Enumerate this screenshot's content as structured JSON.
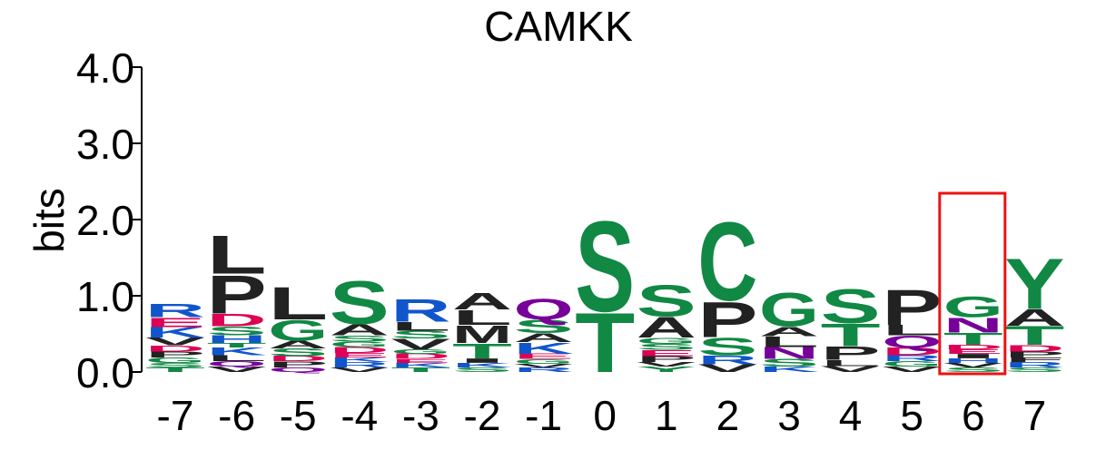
{
  "chart_data": {
    "type": "sequence_logo",
    "title": "CAMKK",
    "ylabel": "bits",
    "xlabel": "",
    "ylim": [
      0,
      4
    ],
    "yticks": [
      "0.0",
      "1.0",
      "2.0",
      "3.0",
      "4.0"
    ],
    "colors": {
      "acidic": "#dd0055",
      "basic": "#1155cc",
      "polar": "#118844",
      "hydrophobic": "#222222",
      "amide": "#770099",
      "highlight_box": "#ee1111"
    },
    "highlight_position": "6",
    "positions": [
      {
        "label": "-7",
        "letters": [
          [
            "T",
            0.06
          ],
          [
            "S",
            0.06
          ],
          [
            "G",
            0.07
          ],
          [
            "P",
            0.08
          ],
          [
            "D",
            0.08
          ],
          [
            "V",
            0.1
          ],
          [
            "K",
            0.14
          ],
          [
            "E",
            0.13
          ],
          [
            "R",
            0.18
          ]
        ]
      },
      {
        "label": "-6",
        "letters": [
          [
            "V",
            0.07
          ],
          [
            "Q",
            0.07
          ],
          [
            "L",
            0.08
          ],
          [
            "K",
            0.1
          ],
          [
            "T",
            0.06
          ],
          [
            "H",
            0.1
          ],
          [
            "S",
            0.12
          ],
          [
            "D",
            0.17
          ],
          [
            "P",
            0.52
          ],
          [
            "L",
            0.52
          ]
        ]
      },
      {
        "label": "-5",
        "letters": [
          [
            "Q",
            0.06
          ],
          [
            "P",
            0.08
          ],
          [
            "D",
            0.07
          ],
          [
            "S",
            0.1
          ],
          [
            "A",
            0.1
          ],
          [
            "G",
            0.28
          ],
          [
            "L",
            0.44
          ]
        ]
      },
      {
        "label": "-4",
        "letters": [
          [
            "V",
            0.06
          ],
          [
            "R",
            0.07
          ],
          [
            "K",
            0.06
          ],
          [
            "E",
            0.06
          ],
          [
            "D",
            0.08
          ],
          [
            "G",
            0.07
          ],
          [
            "S",
            0.08
          ],
          [
            "A",
            0.15
          ],
          [
            "S",
            0.58
          ]
        ]
      },
      {
        "label": "-3",
        "letters": [
          [
            "T",
            0.06
          ],
          [
            "K",
            0.06
          ],
          [
            "E",
            0.05
          ],
          [
            "D",
            0.07
          ],
          [
            "G",
            0.06
          ],
          [
            "V",
            0.14
          ],
          [
            "S",
            0.1
          ],
          [
            "L",
            0.12
          ],
          [
            "R",
            0.3
          ]
        ]
      },
      {
        "label": "-2",
        "letters": [
          [
            "S",
            0.06
          ],
          [
            "K",
            0.06
          ],
          [
            "I",
            0.06
          ],
          [
            "T",
            0.2
          ],
          [
            "M",
            0.24
          ],
          [
            "L",
            0.2
          ],
          [
            "A",
            0.22
          ]
        ]
      },
      {
        "label": "-1",
        "letters": [
          [
            "R",
            0.06
          ],
          [
            "V",
            0.05
          ],
          [
            "G",
            0.06
          ],
          [
            "E",
            0.07
          ],
          [
            "K",
            0.15
          ],
          [
            "A",
            0.12
          ],
          [
            "S",
            0.18
          ],
          [
            "Q",
            0.28
          ]
        ]
      },
      {
        "label": "0",
        "letters": [
          [
            "T",
            0.8
          ],
          [
            "S",
            1.22
          ]
        ]
      },
      {
        "label": "1",
        "letters": [
          [
            "Y",
            0.07
          ],
          [
            "V",
            0.06
          ],
          [
            "P",
            0.08
          ],
          [
            "E",
            0.08
          ],
          [
            "S",
            0.08
          ],
          [
            "G",
            0.08
          ],
          [
            "A",
            0.28
          ],
          [
            "S",
            0.42
          ]
        ]
      },
      {
        "label": "2",
        "letters": [
          [
            "V",
            0.1
          ],
          [
            "R",
            0.12
          ],
          [
            "S",
            0.24
          ],
          [
            "P",
            0.48
          ],
          [
            "C",
            1.06
          ]
        ]
      },
      {
        "label": "3",
        "letters": [
          [
            "K",
            0.07
          ],
          [
            "S",
            0.1
          ],
          [
            "N",
            0.16
          ],
          [
            "L",
            0.14
          ],
          [
            "A",
            0.13
          ],
          [
            "G",
            0.45
          ]
        ]
      },
      {
        "label": "4",
        "letters": [
          [
            "V",
            0.08
          ],
          [
            "L",
            0.08
          ],
          [
            "P",
            0.18
          ],
          [
            "T",
            0.3
          ],
          [
            "S",
            0.46
          ]
        ]
      },
      {
        "label": "5",
        "letters": [
          [
            "V",
            0.07
          ],
          [
            "G",
            0.07
          ],
          [
            "R",
            0.08
          ],
          [
            "D",
            0.1
          ],
          [
            "Q",
            0.16
          ],
          [
            "L",
            0.14
          ],
          [
            "P",
            0.48
          ]
        ]
      },
      {
        "label": "6",
        "letters": [
          [
            "S",
            0.06
          ],
          [
            "V",
            0.06
          ],
          [
            "H",
            0.06
          ],
          [
            "I",
            0.06
          ],
          [
            "E",
            0.06
          ],
          [
            "D",
            0.06
          ],
          [
            "T",
            0.16
          ],
          [
            "N",
            0.2
          ],
          [
            "G",
            0.28
          ]
        ]
      },
      {
        "label": "7",
        "letters": [
          [
            "S",
            0.06
          ],
          [
            "R",
            0.07
          ],
          [
            "F",
            0.06
          ],
          [
            "P",
            0.08
          ],
          [
            "D",
            0.09
          ],
          [
            "T",
            0.25
          ],
          [
            "A",
            0.22
          ],
          [
            "Y",
            0.68
          ]
        ]
      }
    ]
  }
}
